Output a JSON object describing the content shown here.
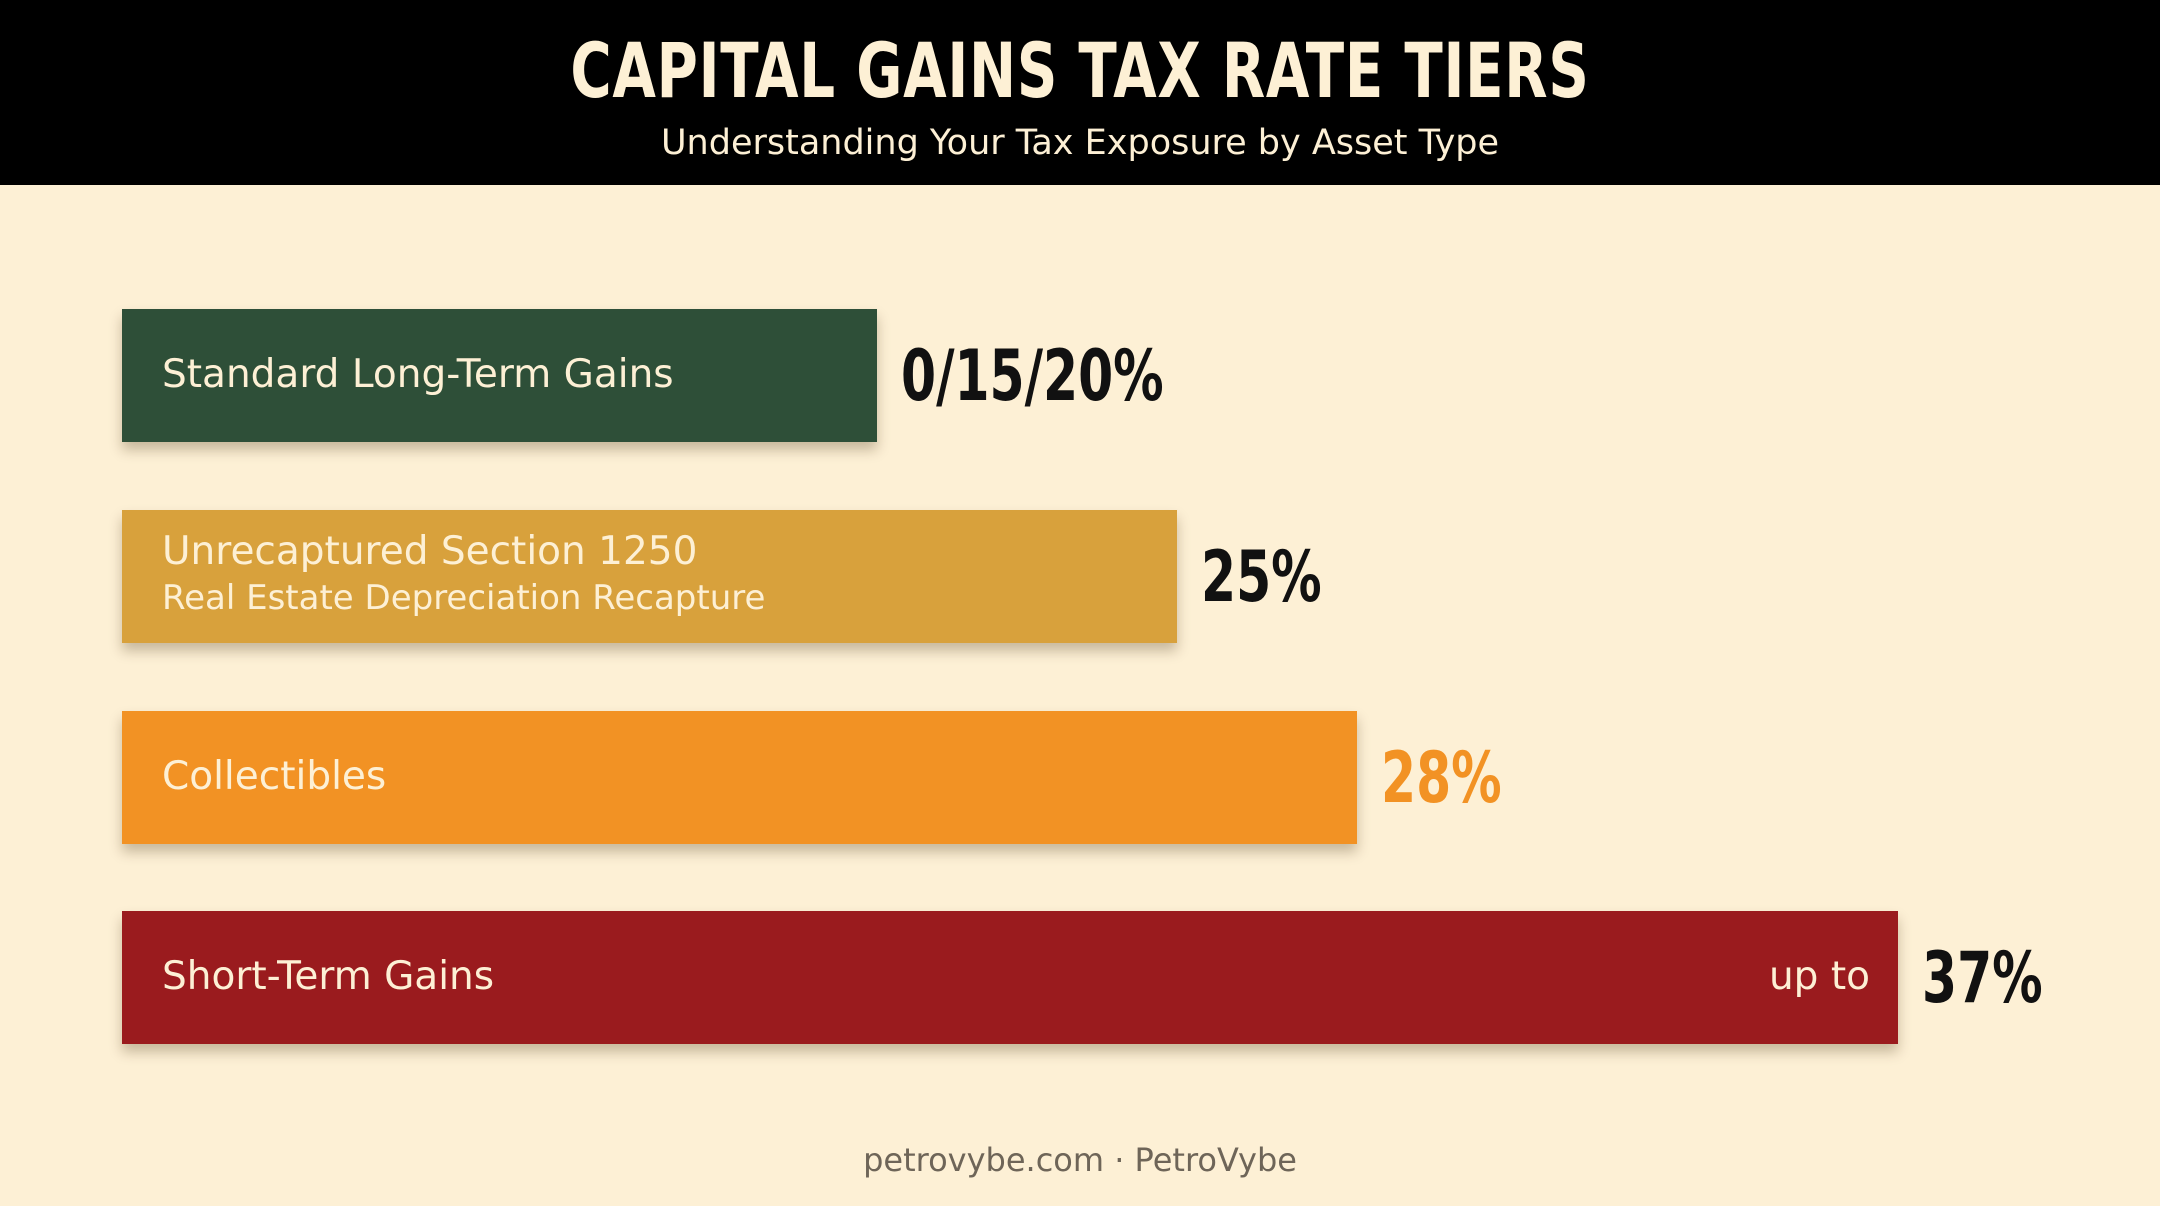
{
  "header": {
    "title": "CAPITAL GAINS TAX RATE TIERS",
    "subtitle": "Understanding Your Tax Exposure by Asset Type"
  },
  "chart_data": {
    "type": "bar",
    "orientation": "horizontal",
    "title": "CAPITAL GAINS TAX RATE TIERS",
    "subtitle": "Understanding Your Tax Exposure by Asset Type",
    "xlabel": "",
    "ylabel": "",
    "xlim": [
      0,
      37
    ],
    "grid": false,
    "bars": [
      {
        "label": "Standard Long-Term Gains",
        "sublabel": "",
        "prefix": "",
        "value_label": "0/15/20%",
        "value": 20,
        "color": "#2e4f38",
        "value_color": "#111111"
      },
      {
        "label": "Unrecaptured Section 1250",
        "sublabel": "Real Estate Depreciation Recapture",
        "prefix": "",
        "value_label": "25%",
        "value": 25,
        "color": "#d8a13c",
        "value_color": "#111111"
      },
      {
        "label": "Collectibles",
        "sublabel": "",
        "prefix": "",
        "value_label": "28%",
        "value": 28,
        "color": "#f29224",
        "value_color": "#f29224"
      },
      {
        "label": "Short-Term Gains",
        "sublabel": "",
        "prefix": "up to",
        "value_label": "37%",
        "value": 37,
        "color": "#9a1b1e",
        "value_color": "#111111"
      }
    ]
  },
  "footer": {
    "text": "petrovybe.com · PetroVybe"
  }
}
